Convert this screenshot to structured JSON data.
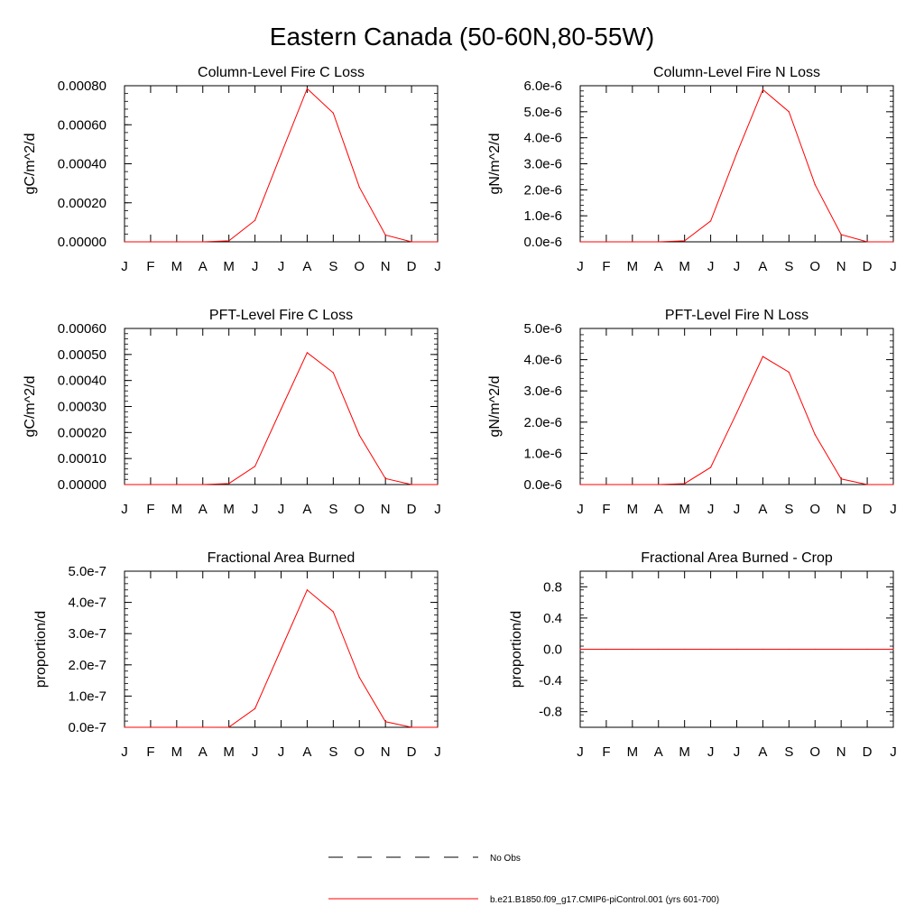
{
  "figure": {
    "title": "Eastern Canada (50-60N,80-55W)"
  },
  "legend": {
    "placement": "bottom-center",
    "entries": [
      {
        "label": "No Obs",
        "style": "dashed",
        "color": "#000000"
      },
      {
        "label": "b.e21.B1850.f09_g17.CMIP6-piControl.001 (yrs 601-700)",
        "style": "solid",
        "color": "#ff0000"
      }
    ]
  },
  "colors": {
    "series_line": "#ff0000",
    "axes": "#000000",
    "background": "#ffffff"
  },
  "chart_data": [
    {
      "type": "line",
      "title": "Column-Level Fire C Loss",
      "xlabel": "",
      "ylabel": "gC/m^2/d",
      "categories": [
        "J",
        "F",
        "M",
        "A",
        "M",
        "J",
        "J",
        "A",
        "S",
        "O",
        "N",
        "D",
        "J"
      ],
      "ylim": [
        0,
        0.0008
      ],
      "yticks": [
        0,
        0.0002,
        0.0004,
        0.0006,
        0.0008
      ],
      "ytick_labels": [
        "0.00000",
        "0.00020",
        "0.00040",
        "0.00060",
        "0.00080"
      ],
      "grid": false,
      "series": [
        {
          "color": "#ff0000",
          "values": [
            0,
            0,
            0,
            0,
            5e-06,
            0.00011,
            0.00045,
            0.000785,
            0.00066,
            0.00028,
            3.5e-05,
            0,
            0
          ]
        }
      ]
    },
    {
      "type": "line",
      "title": "Column-Level Fire N Loss",
      "xlabel": "",
      "ylabel": "gN/m^2/d",
      "categories": [
        "J",
        "F",
        "M",
        "A",
        "M",
        "J",
        "J",
        "A",
        "S",
        "O",
        "N",
        "D",
        "J"
      ],
      "ylim": [
        0,
        6e-06
      ],
      "yticks": [
        0,
        1e-06,
        2e-06,
        3e-06,
        4e-06,
        5e-06,
        6e-06
      ],
      "ytick_labels": [
        "0.0e-6",
        "1.0e-6",
        "2.0e-6",
        "3.0e-6",
        "4.0e-6",
        "5.0e-6",
        "6.0e-6"
      ],
      "grid": false,
      "series": [
        {
          "color": "#ff0000",
          "values": [
            0,
            0,
            0,
            0,
            4e-08,
            8e-07,
            3.4e-06,
            5.85e-06,
            5e-06,
            2.2e-06,
            2.8e-07,
            0,
            0
          ]
        }
      ]
    },
    {
      "type": "line",
      "title": "PFT-Level Fire C Loss",
      "xlabel": "",
      "ylabel": "gC/m^2/d",
      "categories": [
        "J",
        "F",
        "M",
        "A",
        "M",
        "J",
        "J",
        "A",
        "S",
        "O",
        "N",
        "D",
        "J"
      ],
      "ylim": [
        0,
        0.0006
      ],
      "yticks": [
        0,
        0.0001,
        0.0002,
        0.0003,
        0.0004,
        0.0005,
        0.0006
      ],
      "ytick_labels": [
        "0.00000",
        "0.00010",
        "0.00020",
        "0.00030",
        "0.00040",
        "0.00050",
        "0.00060"
      ],
      "grid": false,
      "series": [
        {
          "color": "#ff0000",
          "values": [
            0,
            0,
            0,
            0,
            4e-06,
            7e-05,
            0.00029,
            0.000507,
            0.00043,
            0.00019,
            2.3e-05,
            0,
            0
          ]
        }
      ]
    },
    {
      "type": "line",
      "title": "PFT-Level Fire N Loss",
      "xlabel": "",
      "ylabel": "gN/m^2/d",
      "categories": [
        "J",
        "F",
        "M",
        "A",
        "M",
        "J",
        "J",
        "A",
        "S",
        "O",
        "N",
        "D",
        "J"
      ],
      "ylim": [
        0,
        5e-06
      ],
      "yticks": [
        0,
        1e-06,
        2e-06,
        3e-06,
        4e-06,
        5e-06
      ],
      "ytick_labels": [
        "0.0e-6",
        "1.0e-6",
        "2.0e-6",
        "3.0e-6",
        "4.0e-6",
        "5.0e-6"
      ],
      "grid": false,
      "series": [
        {
          "color": "#ff0000",
          "values": [
            0,
            0,
            0,
            0,
            3e-08,
            5.5e-07,
            2.3e-06,
            4.1e-06,
            3.6e-06,
            1.6e-06,
            1.8e-07,
            0,
            0
          ]
        }
      ]
    },
    {
      "type": "line",
      "title": "Fractional Area Burned",
      "xlabel": "",
      "ylabel": "proportion/d",
      "categories": [
        "J",
        "F",
        "M",
        "A",
        "M",
        "J",
        "J",
        "A",
        "S",
        "O",
        "N",
        "D",
        "J"
      ],
      "ylim": [
        0,
        5e-07
      ],
      "yticks": [
        0,
        1e-07,
        2e-07,
        3e-07,
        4e-07,
        5e-07
      ],
      "ytick_labels": [
        "0.0e-7",
        "1.0e-7",
        "2.0e-7",
        "3.0e-7",
        "4.0e-7",
        "5.0e-7"
      ],
      "grid": false,
      "series": [
        {
          "color": "#ff0000",
          "values": [
            0,
            0,
            0,
            0,
            4e-10,
            6e-08,
            2.5e-07,
            4.4e-07,
            3.7e-07,
            1.6e-07,
            1.8e-08,
            0,
            0
          ]
        }
      ]
    },
    {
      "type": "line",
      "title": "Fractional Area Burned - Crop",
      "xlabel": "",
      "ylabel": "proportion/d",
      "categories": [
        "J",
        "F",
        "M",
        "A",
        "M",
        "J",
        "J",
        "A",
        "S",
        "O",
        "N",
        "D",
        "J"
      ],
      "ylim": [
        -1.0,
        1.0
      ],
      "yticks": [
        -0.8,
        -0.4,
        0.0,
        0.4,
        0.8
      ],
      "ytick_labels": [
        "-0.8",
        "-0.4",
        "0.0",
        "0.4",
        "0.8"
      ],
      "grid": false,
      "series": [
        {
          "color": "#ff0000",
          "values": [
            0,
            0,
            0,
            0,
            0,
            0,
            0,
            0,
            0,
            0,
            0,
            0,
            0
          ]
        }
      ]
    }
  ]
}
